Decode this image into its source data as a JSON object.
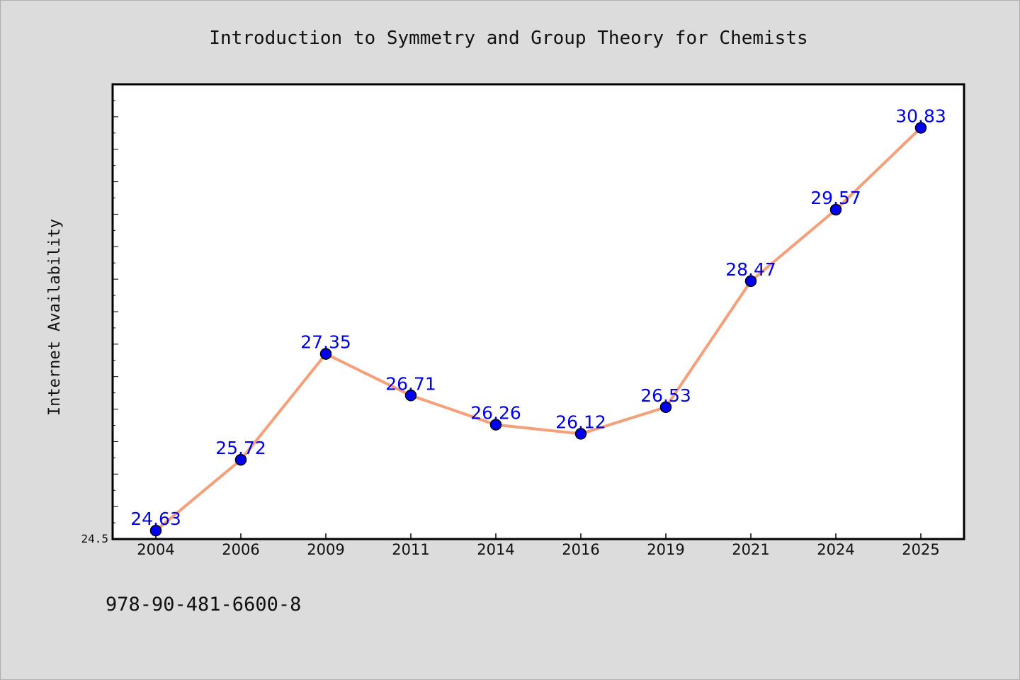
{
  "chart_data": {
    "type": "line",
    "title": "Introduction to Symmetry and Group Theory for Chemists",
    "xlabel": "",
    "ylabel": "Internet Availability",
    "categories": [
      "2004",
      "2006",
      "2009",
      "2011",
      "2014",
      "2016",
      "2019",
      "2021",
      "2024",
      "2025"
    ],
    "series": [
      {
        "values": [
          24.63,
          25.72,
          27.35,
          26.71,
          26.26,
          26.12,
          26.53,
          28.47,
          29.57,
          30.83
        ],
        "labels": [
          "24.63",
          "25.72",
          "27.35",
          "26.71",
          "26.26",
          "26.12",
          "26.53",
          "28.47",
          "29.57",
          "30.83"
        ],
        "line_color": "#f4a07a",
        "marker_color": "#0000ee",
        "label_color": "#0000ee"
      }
    ],
    "ylim": [
      24.5,
      31.5
    ],
    "yticks_labeled": [
      "24.5"
    ],
    "grid": false,
    "legend": "none"
  },
  "footer": {
    "isbn": "978-90-481-6600-8"
  },
  "colors": {
    "background": "#dcdcdc",
    "plot_background": "#ffffff",
    "axis": "#000000"
  }
}
